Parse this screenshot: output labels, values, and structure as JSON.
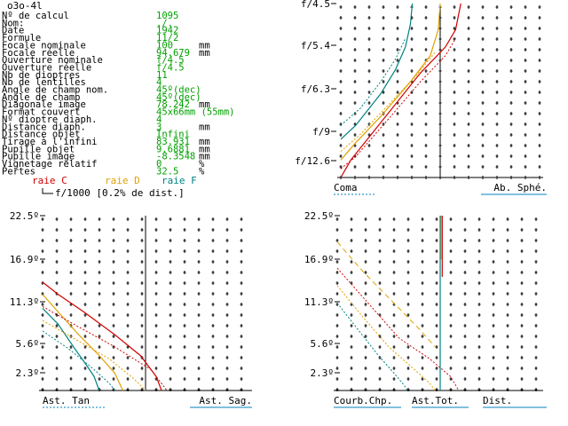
{
  "header": {
    "title": "o3o-4l"
  },
  "info_rows": [
    {
      "label": "Nº de calcul",
      "value": "1095",
      "unit": ""
    },
    {
      "label": "Nom:",
      "value": "./.",
      "unit": ""
    },
    {
      "label": "Date",
      "value": "1942",
      "unit": ""
    },
    {
      "label": "Formule",
      "value": "11/2",
      "unit": ""
    },
    {
      "label": "Focale nominale",
      "value": "100",
      "unit": "mm"
    },
    {
      "label": "Focale réelle",
      "value": "94.679",
      "unit": "mm"
    },
    {
      "label": "Ouverture nominale",
      "value": "f/4.5",
      "unit": ""
    },
    {
      "label": "Ouverture réelle",
      "value": "f/4.5",
      "unit": ""
    },
    {
      "label": "Nb de dioptres",
      "value": "11",
      "unit": ""
    },
    {
      "label": "Nb de lentilles",
      "value": "4",
      "unit": ""
    },
    {
      "label": "Angle de champ nom.",
      "value": "45º(dec)",
      "unit": ""
    },
    {
      "label": "Angle de champ",
      "value": "45º(dec)",
      "unit": ""
    },
    {
      "label": "Diagonale image",
      "value": "78.242",
      "unit": "mm"
    },
    {
      "label": "Format couvert",
      "value": "45x66mm (55mm)",
      "unit": ""
    },
    {
      "label": "Nº dioptre diaph.",
      "value": "4",
      "unit": ""
    },
    {
      "label": "Distance diaph.",
      "value": "3",
      "unit": "mm"
    },
    {
      "label": "Distance objet",
      "value": "Infini",
      "unit": ""
    },
    {
      "label": "Tirage à l'infini",
      "value": "83.931",
      "unit": "mm"
    },
    {
      "label": "Pupille objet",
      "value": "9.6881",
      "unit": "mm"
    },
    {
      "label": "Pupille image",
      "value": "-8.3548",
      "unit": "mm"
    },
    {
      "label": "Vignetage relatif",
      "value": "0",
      "unit": "%"
    },
    {
      "label": "Pertes",
      "value": "32.5",
      "unit": "%"
    }
  ],
  "legend": {
    "c": "raie C",
    "d": "raie D",
    "f": "raie F",
    "scale_note": "f/1000 [0.2% de dist.]"
  },
  "colors": {
    "label_black": "#000000",
    "value_green": "#00a000",
    "line_c": "#d00000",
    "line_d": "#e0a000",
    "line_f": "#008080",
    "underline": "#0080c0"
  },
  "chart_data": [
    {
      "type": "line",
      "name": "coma-spherical",
      "y_ticks": [
        "f/4.5",
        "f/5.4",
        "f/6.3",
        "f/9",
        "f/12.6"
      ],
      "labels": [
        "Coma",
        "Ab. Sphé."
      ],
      "series": [
        {
          "line": "C",
          "style": "solid",
          "points": [
            [
              -1.0,
              0.0
            ],
            [
              -0.9,
              0.1
            ],
            [
              -0.55,
              0.35
            ],
            [
              -0.2,
              0.6
            ],
            [
              0.05,
              0.75
            ],
            [
              0.15,
              0.85
            ],
            [
              0.2,
              1.0
            ]
          ]
        },
        {
          "line": "D",
          "style": "solid",
          "points": [
            [
              -1.0,
              0.1
            ],
            [
              -0.85,
              0.2
            ],
            [
              -0.6,
              0.35
            ],
            [
              -0.3,
              0.55
            ],
            [
              -0.1,
              0.7
            ],
            [
              -0.02,
              0.85
            ],
            [
              0.0,
              1.0
            ]
          ]
        },
        {
          "line": "F",
          "style": "solid",
          "points": [
            [
              -1.0,
              0.22
            ],
            [
              -0.85,
              0.3
            ],
            [
              -0.6,
              0.48
            ],
            [
              -0.45,
              0.62
            ],
            [
              -0.35,
              0.75
            ],
            [
              -0.3,
              0.88
            ],
            [
              -0.28,
              1.0
            ]
          ]
        },
        {
          "line": "C",
          "style": "dashed",
          "points": [
            [
              -1.0,
              0.05
            ],
            [
              -0.85,
              0.12
            ],
            [
              -0.5,
              0.35
            ],
            [
              -0.2,
              0.55
            ],
            [
              0.05,
              0.7
            ],
            [
              0.15,
              0.8
            ]
          ]
        },
        {
          "line": "D",
          "style": "dashed",
          "points": [
            [
              -1.0,
              0.15
            ],
            [
              -0.8,
              0.25
            ],
            [
              -0.55,
              0.4
            ],
            [
              -0.25,
              0.58
            ],
            [
              -0.05,
              0.72
            ]
          ]
        },
        {
          "line": "F",
          "style": "dashed",
          "points": [
            [
              -1.0,
              0.3
            ],
            [
              -0.8,
              0.4
            ],
            [
              -0.6,
              0.55
            ],
            [
              -0.45,
              0.68
            ],
            [
              -0.35,
              0.8
            ]
          ]
        }
      ]
    },
    {
      "type": "line",
      "name": "astigmatism",
      "y_ticks": [
        "22.5º",
        "16.9º",
        "11.3º",
        "5.6º",
        "2.3º"
      ],
      "labels": [
        "Ast. Tan",
        "Ast. Sag."
      ],
      "series": [
        {
          "line": "C",
          "style": "solid",
          "points": [
            [
              -1.0,
              0.62
            ],
            [
              -0.85,
              0.55
            ],
            [
              -0.6,
              0.45
            ],
            [
              -0.3,
              0.32
            ],
            [
              -0.05,
              0.2
            ],
            [
              0.1,
              0.08
            ],
            [
              0.15,
              0.0
            ]
          ]
        },
        {
          "line": "D",
          "style": "solid",
          "points": [
            [
              -1.0,
              0.55
            ],
            [
              -0.85,
              0.45
            ],
            [
              -0.65,
              0.32
            ],
            [
              -0.45,
              0.2
            ],
            [
              -0.3,
              0.1
            ],
            [
              -0.22,
              0.0
            ]
          ]
        },
        {
          "line": "F",
          "style": "solid",
          "points": [
            [
              -1.0,
              0.47
            ],
            [
              -0.85,
              0.38
            ],
            [
              -0.7,
              0.25
            ],
            [
              -0.58,
              0.15
            ],
            [
              -0.5,
              0.08
            ],
            [
              -0.45,
              0.0
            ]
          ]
        },
        {
          "line": "C",
          "style": "dashed",
          "points": [
            [
              -1.0,
              0.48
            ],
            [
              -0.7,
              0.38
            ],
            [
              -0.3,
              0.25
            ],
            [
              0.05,
              0.12
            ],
            [
              0.2,
              0.0
            ]
          ]
        },
        {
          "line": "D",
          "style": "dashed",
          "points": [
            [
              -1.0,
              0.4
            ],
            [
              -0.7,
              0.3
            ],
            [
              -0.35,
              0.18
            ],
            [
              -0.1,
              0.06
            ],
            [
              0.0,
              0.0
            ]
          ]
        },
        {
          "line": "F",
          "style": "dashed",
          "points": [
            [
              -1.0,
              0.34
            ],
            [
              -0.75,
              0.24
            ],
            [
              -0.5,
              0.12
            ],
            [
              -0.35,
              0.04
            ],
            [
              -0.3,
              0.0
            ]
          ]
        }
      ]
    },
    {
      "type": "line",
      "name": "field-curvature",
      "y_ticks": [
        "22.5º",
        "16.9º",
        "11.3º",
        "5.6º",
        "2.3º"
      ],
      "labels": [
        "Courb.Chp.",
        "Ast.Tot.",
        "Dist."
      ],
      "series": [
        {
          "line": "C",
          "style": "dashed",
          "points": [
            [
              -1.0,
              0.7
            ],
            [
              -0.7,
              0.5
            ],
            [
              -0.4,
              0.3
            ],
            [
              -0.1,
              0.18
            ],
            [
              0.1,
              0.08
            ],
            [
              0.18,
              0.0
            ]
          ]
        },
        {
          "line": "D",
          "style": "dashed",
          "points": [
            [
              -1.0,
              0.6
            ],
            [
              -0.75,
              0.42
            ],
            [
              -0.5,
              0.25
            ],
            [
              -0.25,
              0.12
            ],
            [
              -0.1,
              0.04
            ],
            [
              -0.05,
              0.0
            ]
          ]
        },
        {
          "line": "F",
          "style": "dashed",
          "points": [
            [
              -1.0,
              0.5
            ],
            [
              -0.8,
              0.35
            ],
            [
              -0.6,
              0.2
            ],
            [
              -0.45,
              0.1
            ],
            [
              -0.35,
              0.03
            ],
            [
              -0.32,
              0.0
            ]
          ]
        },
        {
          "line": "D",
          "style": "dashed_long",
          "points": [
            [
              -1.0,
              0.85
            ],
            [
              -0.75,
              0.68
            ],
            [
              -0.45,
              0.5
            ],
            [
              -0.2,
              0.35
            ],
            [
              -0.05,
              0.25
            ]
          ]
        },
        {
          "line": "C",
          "style": "solid",
          "points": [
            [
              0.02,
              1.0
            ],
            [
              0.02,
              0.65
            ]
          ]
        },
        {
          "line": "D",
          "style": "solid",
          "points": [
            [
              0.01,
              1.0
            ],
            [
              0.01,
              0.75
            ]
          ]
        },
        {
          "line": "F",
          "style": "solid",
          "points": [
            [
              0.0,
              1.0
            ],
            [
              0.0,
              0.0
            ]
          ]
        }
      ]
    }
  ]
}
